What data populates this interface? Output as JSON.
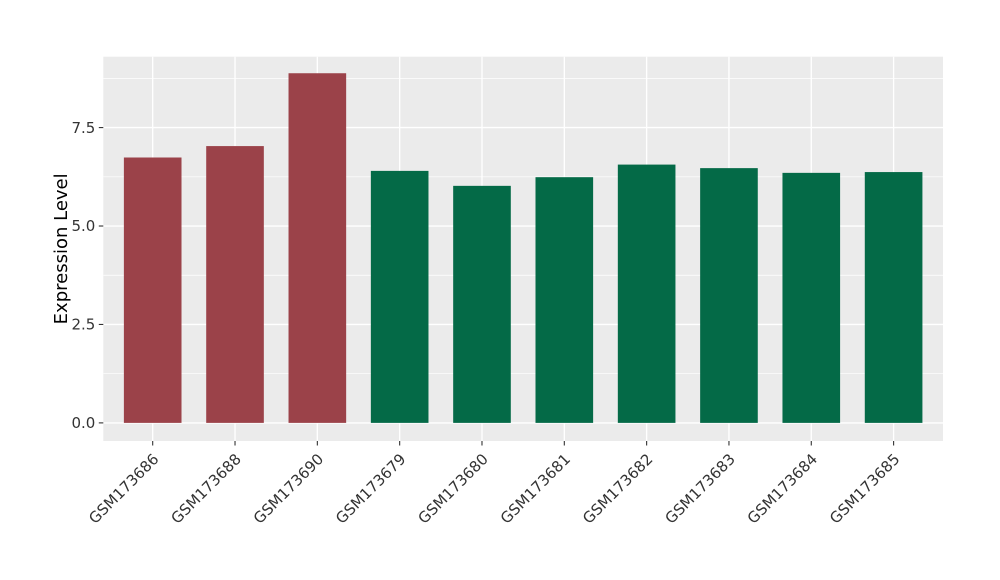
{
  "chart_data": {
    "type": "bar",
    "title": "",
    "xlabel": "",
    "ylabel": "Expression Level",
    "categories": [
      "GSM173686",
      "GSM173688",
      "GSM173690",
      "GSM173679",
      "GSM173680",
      "GSM173681",
      "GSM173682",
      "GSM173683",
      "GSM173684",
      "GSM173685"
    ],
    "values": [
      6.74,
      7.03,
      8.88,
      6.4,
      6.02,
      6.24,
      6.56,
      6.47,
      6.35,
      6.37
    ],
    "bar_colors": [
      "#9B4249",
      "#9B4249",
      "#9B4249",
      "#046A47",
      "#046A47",
      "#046A47",
      "#046A47",
      "#046A47",
      "#046A47",
      "#046A47"
    ],
    "y_ticks": [
      {
        "value": 0.0,
        "label": "0.0"
      },
      {
        "value": 2.5,
        "label": "2.5"
      },
      {
        "value": 5.0,
        "label": "5.0"
      },
      {
        "value": 7.5,
        "label": "7.5"
      }
    ],
    "y_minor_ticks": [
      1.25,
      3.75,
      6.25,
      8.75
    ],
    "ylim": [
      -0.46,
      9.3
    ],
    "legend": "none",
    "grid": "on",
    "colors": {
      "panel_background": "#EBEBEB",
      "grid_major": "#FFFFFF",
      "grid_minor": "#FFFFFF",
      "axis_text": "#333333",
      "axis_title": "#000000",
      "tick_marks": "#333333",
      "figure_background": "#FFFFFF"
    }
  }
}
